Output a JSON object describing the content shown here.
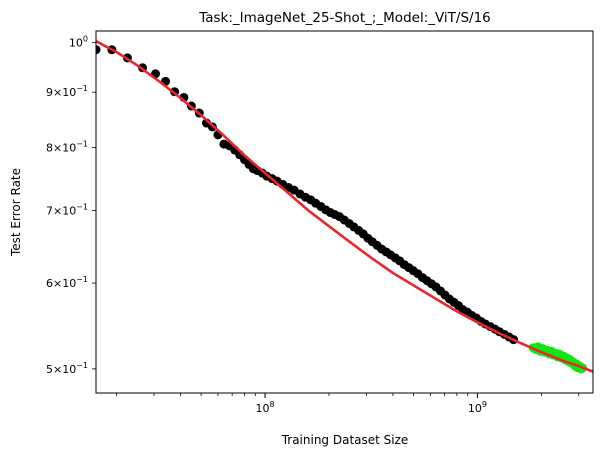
{
  "chart_data": {
    "type": "scatter",
    "title": "Task:_ImageNet_25-Shot_;_Model:_ViT/S/16",
    "xlabel": "Training Dataset Size",
    "ylabel": "Test Error Rate",
    "x_scale": "log",
    "y_scale": "log",
    "xlim": [
      16000000,
      3500000000
    ],
    "ylim": [
      0.475,
      1.025
    ],
    "grid": false,
    "x_ticks": [
      {
        "value": 100000000,
        "base": "10",
        "exp": "8"
      },
      {
        "value": 1000000000,
        "base": "10",
        "exp": "9"
      }
    ],
    "y_ticks": [
      {
        "value": 0.5,
        "mant": "5",
        "base": "10",
        "exp": "−1"
      },
      {
        "value": 0.6,
        "mant": "6",
        "base": "10",
        "exp": "−1"
      },
      {
        "value": 0.7,
        "mant": "7",
        "base": "10",
        "exp": "−1"
      },
      {
        "value": 0.8,
        "mant": "8",
        "base": "10",
        "exp": "−1"
      },
      {
        "value": 0.9,
        "mant": "9",
        "base": "10",
        "exp": "−1"
      },
      {
        "value": 1.0,
        "mant": "",
        "base": "10",
        "exp": "0"
      }
    ],
    "series": [
      {
        "role": "observed",
        "color": "#000000",
        "points": [
          [
            16000000,
            0.985
          ],
          [
            19000000,
            0.985
          ],
          [
            22500000,
            0.968
          ],
          [
            26500000,
            0.948
          ],
          [
            30500000,
            0.936
          ],
          [
            34000000,
            0.921
          ],
          [
            37500000,
            0.901
          ],
          [
            41500000,
            0.89
          ],
          [
            45000000,
            0.874
          ],
          [
            49000000,
            0.861
          ],
          [
            53000000,
            0.843
          ],
          [
            56500000,
            0.836
          ],
          [
            60000000,
            0.822
          ],
          [
            64000000,
            0.806
          ],
          [
            68000000,
            0.803
          ],
          [
            72000000,
            0.796
          ],
          [
            76000000,
            0.788
          ],
          [
            80000000,
            0.78
          ],
          [
            84000000,
            0.772
          ],
          [
            88000000,
            0.765
          ],
          [
            92000000,
            0.762
          ],
          [
            97000000,
            0.758
          ],
          [
            102000000,
            0.753
          ],
          [
            108000000,
            0.749
          ],
          [
            114000000,
            0.745
          ],
          [
            121000000,
            0.74
          ],
          [
            129000000,
            0.735
          ],
          [
            137000000,
            0.731
          ],
          [
            146000000,
            0.725
          ],
          [
            155000000,
            0.72
          ],
          [
            164000000,
            0.716
          ],
          [
            173000000,
            0.711
          ],
          [
            183000000,
            0.706
          ],
          [
            193000000,
            0.701
          ],
          [
            203000000,
            0.697
          ],
          [
            213000000,
            0.694
          ],
          [
            224000000,
            0.691
          ],
          [
            236000000,
            0.686
          ],
          [
            249000000,
            0.681
          ],
          [
            262000000,
            0.676
          ],
          [
            276000000,
            0.671
          ],
          [
            290000000,
            0.666
          ],
          [
            305000000,
            0.66
          ],
          [
            320000000,
            0.655
          ],
          [
            337000000,
            0.65
          ],
          [
            354000000,
            0.645
          ],
          [
            372000000,
            0.641
          ],
          [
            390000000,
            0.637
          ],
          [
            410000000,
            0.633
          ],
          [
            430000000,
            0.629
          ],
          [
            452000000,
            0.624
          ],
          [
            475000000,
            0.62
          ],
          [
            499000000,
            0.616
          ],
          [
            524000000,
            0.612
          ],
          [
            551000000,
            0.607
          ],
          [
            579000000,
            0.603
          ],
          [
            608000000,
            0.599
          ],
          [
            638000000,
            0.595
          ],
          [
            670000000,
            0.59
          ],
          [
            703000000,
            0.585
          ],
          [
            738000000,
            0.58
          ],
          [
            775000000,
            0.576
          ],
          [
            814000000,
            0.572
          ],
          [
            854000000,
            0.567
          ],
          [
            897000000,
            0.564
          ],
          [
            942000000,
            0.56
          ],
          [
            989000000,
            0.557
          ],
          [
            1040000000,
            0.553
          ],
          [
            1090000000,
            0.55
          ],
          [
            1150000000,
            0.547
          ],
          [
            1210000000,
            0.544
          ],
          [
            1270000000,
            0.541
          ],
          [
            1340000000,
            0.538
          ],
          [
            1410000000,
            0.535
          ],
          [
            1480000000,
            0.532
          ]
        ]
      },
      {
        "role": "held-out",
        "color": "#12e512",
        "points": [
          [
            1830000000,
            0.523
          ],
          [
            1880000000,
            0.521
          ],
          [
            1930000000,
            0.524
          ],
          [
            1980000000,
            0.519
          ],
          [
            2030000000,
            0.522
          ],
          [
            2080000000,
            0.518
          ],
          [
            2130000000,
            0.52
          ],
          [
            2180000000,
            0.516
          ],
          [
            2230000000,
            0.519
          ],
          [
            2280000000,
            0.515
          ],
          [
            2330000000,
            0.517
          ],
          [
            2380000000,
            0.513
          ],
          [
            2430000000,
            0.516
          ],
          [
            2480000000,
            0.512
          ],
          [
            2530000000,
            0.514
          ],
          [
            2580000000,
            0.51
          ],
          [
            2630000000,
            0.512
          ],
          [
            2680000000,
            0.508
          ],
          [
            2730000000,
            0.51
          ],
          [
            2780000000,
            0.506
          ],
          [
            2830000000,
            0.507
          ],
          [
            2880000000,
            0.503
          ],
          [
            2930000000,
            0.505
          ],
          [
            2980000000,
            0.501
          ],
          [
            3030000000,
            0.503
          ],
          [
            3080000000,
            0.5
          ],
          [
            3130000000,
            0.501
          ]
        ]
      }
    ],
    "fit": {
      "color": "#e8262b",
      "points": [
        [
          16000000,
          1.003
        ],
        [
          20000000,
          0.98
        ],
        [
          25000000,
          0.953
        ],
        [
          32000000,
          0.92
        ],
        [
          40000000,
          0.889
        ],
        [
          50000000,
          0.857
        ],
        [
          63000000,
          0.823
        ],
        [
          80000000,
          0.787
        ],
        [
          100000000,
          0.758
        ],
        [
          125000000,
          0.73
        ],
        [
          160000000,
          0.7
        ],
        [
          200000000,
          0.677
        ],
        [
          250000000,
          0.655
        ],
        [
          320000000,
          0.632
        ],
        [
          400000000,
          0.613
        ],
        [
          500000000,
          0.597
        ],
        [
          630000000,
          0.581
        ],
        [
          800000000,
          0.565
        ],
        [
          1000000000,
          0.552
        ],
        [
          1250000000,
          0.54
        ],
        [
          1600000000,
          0.528
        ],
        [
          2000000000,
          0.518
        ],
        [
          2500000000,
          0.509
        ],
        [
          3000000000,
          0.503
        ],
        [
          3500000000,
          0.497
        ]
      ]
    }
  }
}
